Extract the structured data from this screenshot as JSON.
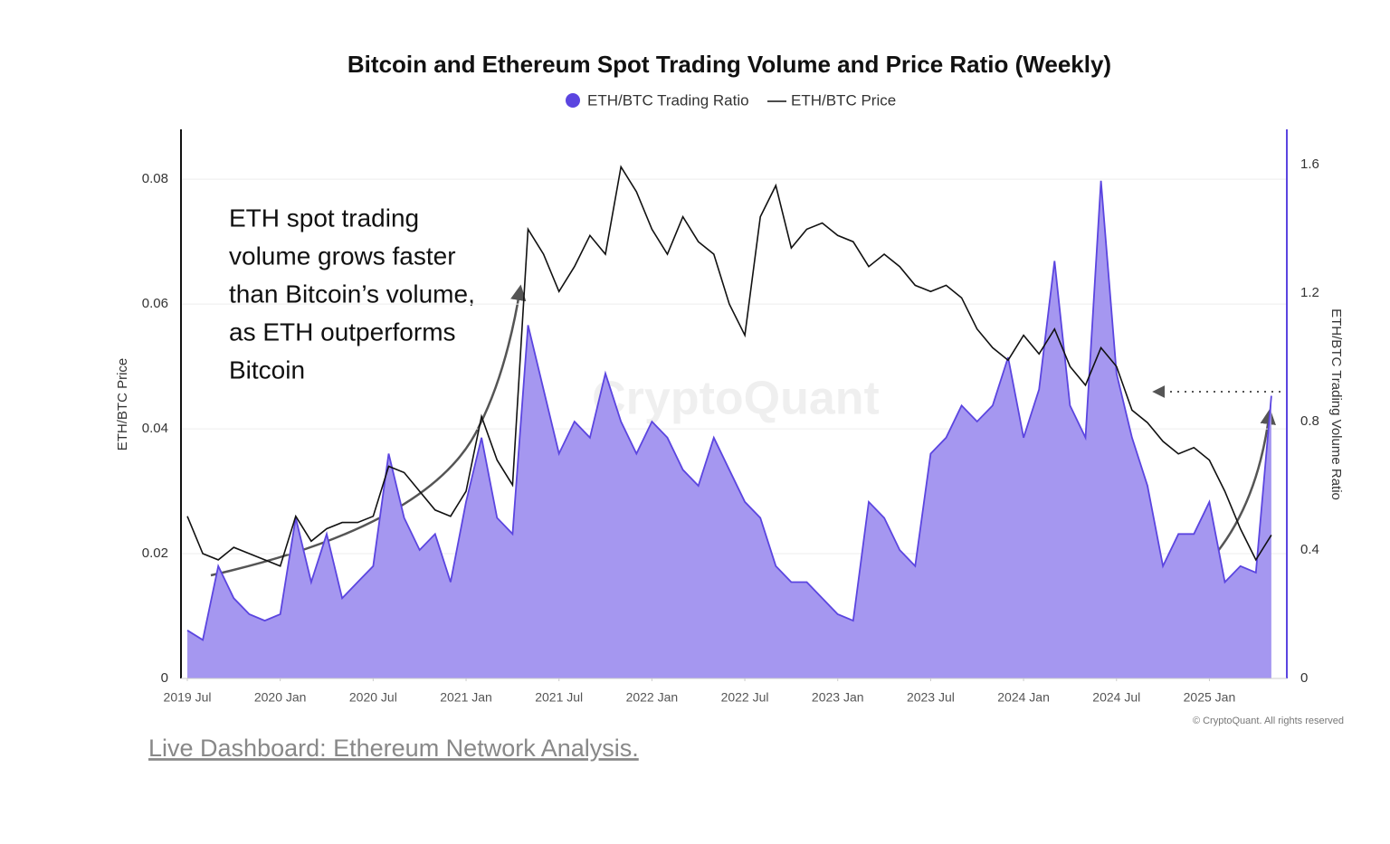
{
  "chart_data": {
    "type": "line",
    "title": "Bitcoin and Ethereum Spot Trading Volume and Price Ratio (Weekly)",
    "y_label": "ETH/BTC Price",
    "y2_label": "ETH/BTC Trading Volume Ratio",
    "annotation": [
      "ETH spot trading",
      "volume grows faster",
      "than Bitcoin’s volume,",
      "as ETH outperforms",
      "Bitcoin"
    ],
    "watermark": "CryptoQuant",
    "copyright": "© CryptoQuant. All rights reserved",
    "x": [
      "2019-07",
      "2019-08",
      "2019-09",
      "2019-10",
      "2019-11",
      "2019-12",
      "2020-01",
      "2020-02",
      "2020-03",
      "2020-04",
      "2020-05",
      "2020-06",
      "2020-07",
      "2020-08",
      "2020-09",
      "2020-10",
      "2020-11",
      "2020-12",
      "2021-01",
      "2021-02",
      "2021-03",
      "2021-04",
      "2021-05",
      "2021-06",
      "2021-07",
      "2021-08",
      "2021-09",
      "2021-10",
      "2021-11",
      "2021-12",
      "2022-01",
      "2022-02",
      "2022-03",
      "2022-04",
      "2022-05",
      "2022-06",
      "2022-07",
      "2022-08",
      "2022-09",
      "2022-10",
      "2022-11",
      "2022-12",
      "2023-01",
      "2023-02",
      "2023-03",
      "2023-04",
      "2023-05",
      "2023-06",
      "2023-07",
      "2023-08",
      "2023-09",
      "2023-10",
      "2023-11",
      "2023-12",
      "2024-01",
      "2024-02",
      "2024-03",
      "2024-04",
      "2024-05",
      "2024-06",
      "2024-07",
      "2024-08",
      "2024-09",
      "2024-10",
      "2024-11",
      "2024-12",
      "2025-01",
      "2025-02",
      "2025-03",
      "2025-04",
      "2025-05"
    ],
    "series": [
      {
        "name": "ETH/BTC Trading Ratio",
        "color": "#5b45e0",
        "fill": "#a597f0",
        "axis": "y2",
        "style": "area",
        "values": [
          0.15,
          0.12,
          0.35,
          0.25,
          0.2,
          0.18,
          0.2,
          0.5,
          0.3,
          0.45,
          0.25,
          0.3,
          0.35,
          0.7,
          0.5,
          0.4,
          0.45,
          0.3,
          0.55,
          0.75,
          0.5,
          0.45,
          1.1,
          0.9,
          0.7,
          0.8,
          0.75,
          0.95,
          0.8,
          0.7,
          0.8,
          0.75,
          0.65,
          0.6,
          0.75,
          0.65,
          0.55,
          0.5,
          0.35,
          0.3,
          0.3,
          0.25,
          0.2,
          0.18,
          0.55,
          0.5,
          0.4,
          0.35,
          0.7,
          0.75,
          0.85,
          0.8,
          0.85,
          1.0,
          0.75,
          0.9,
          1.3,
          0.85,
          0.75,
          1.55,
          0.95,
          0.75,
          0.6,
          0.35,
          0.45,
          0.45,
          0.55,
          0.3,
          0.35,
          0.33,
          0.88
        ]
      },
      {
        "name": "ETH/BTC Price",
        "color": "#111111",
        "style": "line",
        "values": [
          0.026,
          0.02,
          0.019,
          0.021,
          0.02,
          0.019,
          0.018,
          0.026,
          0.022,
          0.024,
          0.025,
          0.025,
          0.026,
          0.034,
          0.033,
          0.03,
          0.027,
          0.026,
          0.03,
          0.042,
          0.035,
          0.031,
          0.072,
          0.068,
          0.062,
          0.066,
          0.071,
          0.068,
          0.082,
          0.078,
          0.072,
          0.068,
          0.074,
          0.07,
          0.068,
          0.06,
          0.055,
          0.074,
          0.079,
          0.069,
          0.072,
          0.073,
          0.071,
          0.07,
          0.066,
          0.068,
          0.066,
          0.063,
          0.062,
          0.063,
          0.061,
          0.056,
          0.053,
          0.051,
          0.055,
          0.052,
          0.056,
          0.05,
          0.047,
          0.053,
          0.05,
          0.043,
          0.041,
          0.038,
          0.036,
          0.037,
          0.035,
          0.03,
          0.024,
          0.019,
          0.023
        ]
      }
    ],
    "xlim": [
      "2019-07",
      "2025-06"
    ],
    "xticks": [
      {
        "value": "2019-07",
        "label": "2019 Jul"
      },
      {
        "value": "2020-01",
        "label": "2020 Jan"
      },
      {
        "value": "2020-07",
        "label": "2020 Jul"
      },
      {
        "value": "2021-01",
        "label": "2021 Jan"
      },
      {
        "value": "2021-07",
        "label": "2021 Jul"
      },
      {
        "value": "2022-01",
        "label": "2022 Jan"
      },
      {
        "value": "2022-07",
        "label": "2022 Jul"
      },
      {
        "value": "2023-01",
        "label": "2023 Jan"
      },
      {
        "value": "2023-07",
        "label": "2023 Jul"
      },
      {
        "value": "2024-01",
        "label": "2024 Jan"
      },
      {
        "value": "2024-07",
        "label": "2024 Jul"
      },
      {
        "value": "2025-01",
        "label": "2025 Jan"
      }
    ],
    "ylim": [
      0,
      0.088
    ],
    "yticks": [
      0,
      0.02,
      0.04,
      0.06,
      0.08
    ],
    "y2lim": [
      0,
      1.71
    ],
    "y2ticks": [
      0,
      0.4,
      0.8,
      1.2,
      1.6
    ],
    "grid": true
  },
  "footer": {
    "link": "Live Dashboard: Ethereum Network Analysis."
  }
}
